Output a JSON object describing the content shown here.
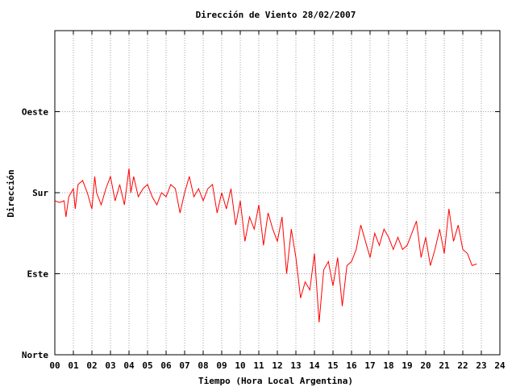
{
  "chart_data": {
    "type": "line",
    "title": "Dirección de Viento 28/02/2007",
    "xlabel": "Tiempo (Hora Local Argentina)",
    "ylabel": "Dirección",
    "xlim": [
      0,
      24
    ],
    "ylim": [
      0,
      4
    ],
    "x_ticks": [
      "00",
      "01",
      "02",
      "03",
      "04",
      "05",
      "06",
      "07",
      "08",
      "09",
      "10",
      "11",
      "12",
      "13",
      "14",
      "15",
      "16",
      "17",
      "18",
      "19",
      "20",
      "21",
      "22",
      "23",
      "24"
    ],
    "y_ticks": [
      {
        "value": 0,
        "label": "Norte"
      },
      {
        "value": 1,
        "label": "Este"
      },
      {
        "value": 2,
        "label": "Sur"
      },
      {
        "value": 3,
        "label": "Oeste"
      }
    ],
    "grid": true,
    "series": [
      {
        "color": "#ff0000",
        "x": [
          0,
          0.25,
          0.5,
          0.6,
          0.75,
          1,
          1.1,
          1.25,
          1.5,
          1.75,
          2,
          2.15,
          2.25,
          2.5,
          2.75,
          3,
          3.25,
          3.5,
          3.75,
          4,
          4.1,
          4.25,
          4.5,
          4.75,
          5,
          5.25,
          5.5,
          5.75,
          6,
          6.25,
          6.5,
          6.75,
          7,
          7.25,
          7.5,
          7.75,
          8,
          8.25,
          8.5,
          8.75,
          9,
          9.25,
          9.5,
          9.75,
          10,
          10.25,
          10.5,
          10.75,
          11,
          11.25,
          11.5,
          11.75,
          12,
          12.25,
          12.5,
          12.75,
          13,
          13.25,
          13.5,
          13.75,
          14,
          14.25,
          14.5,
          14.75,
          15,
          15.25,
          15.5,
          15.75,
          16,
          16.25,
          16.5,
          16.75,
          17,
          17.25,
          17.5,
          17.75,
          18,
          18.25,
          18.5,
          18.75,
          19,
          19.25,
          19.5,
          19.75,
          20,
          20.25,
          20.5,
          20.75,
          21,
          21.25,
          21.5,
          21.75,
          22,
          22.25,
          22.5,
          22.75
        ],
        "y": [
          1.9,
          1.88,
          1.9,
          1.7,
          1.95,
          2.05,
          1.8,
          2.1,
          2.15,
          2.0,
          1.8,
          2.2,
          2.0,
          1.85,
          2.05,
          2.2,
          1.9,
          2.1,
          1.85,
          2.3,
          2.0,
          2.2,
          1.95,
          2.05,
          2.1,
          1.95,
          1.85,
          2.0,
          1.95,
          2.1,
          2.05,
          1.75,
          2.0,
          2.2,
          1.95,
          2.05,
          1.9,
          2.05,
          2.1,
          1.75,
          2.0,
          1.8,
          2.05,
          1.6,
          1.9,
          1.4,
          1.7,
          1.55,
          1.85,
          1.35,
          1.75,
          1.55,
          1.4,
          1.7,
          1.0,
          1.55,
          1.2,
          0.7,
          0.9,
          0.8,
          1.25,
          0.4,
          1.05,
          1.15,
          0.85,
          1.2,
          0.6,
          1.1,
          1.15,
          1.3,
          1.6,
          1.4,
          1.2,
          1.5,
          1.35,
          1.55,
          1.45,
          1.3,
          1.45,
          1.3,
          1.35,
          1.5,
          1.65,
          1.2,
          1.45,
          1.1,
          1.3,
          1.55,
          1.25,
          1.8,
          1.4,
          1.6,
          1.3,
          1.25,
          1.1,
          1.12
        ]
      }
    ]
  }
}
